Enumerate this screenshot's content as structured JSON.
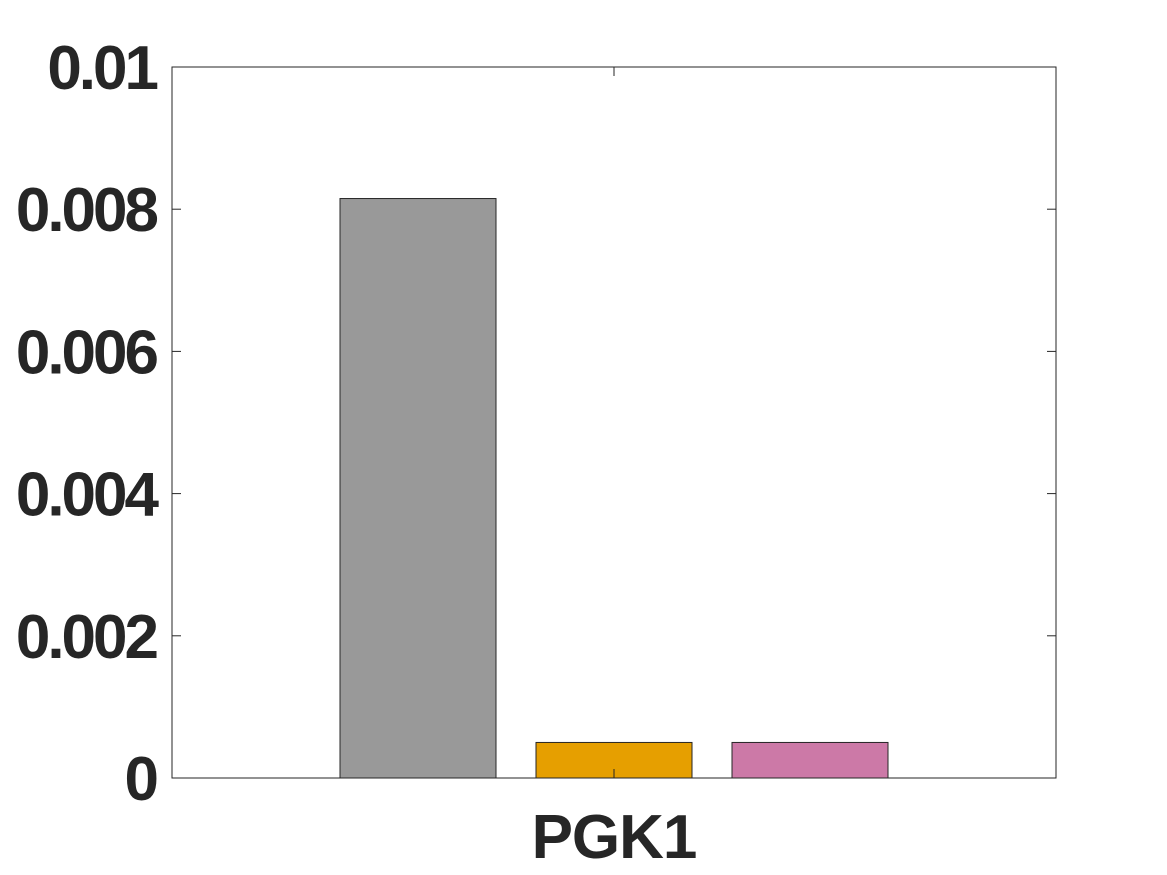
{
  "chart_data": {
    "type": "bar",
    "categories": [
      "PGK1"
    ],
    "series": [
      {
        "values": [
          0.00815
        ],
        "color": "#999999"
      },
      {
        "values": [
          0.0005
        ],
        "color": "#E69F00"
      },
      {
        "values": [
          0.0005
        ],
        "color": "#CC79A7"
      }
    ],
    "ylim": [
      0,
      0.01
    ],
    "yticks": [
      0,
      0.002,
      0.004,
      0.006,
      0.008,
      0.01
    ],
    "ytick_labels": [
      "0",
      "0.002",
      "0.004",
      "0.006",
      "0.008",
      "0.01"
    ],
    "title": "",
    "xlabel": "",
    "ylabel": "",
    "grid": false,
    "legend": "none"
  }
}
